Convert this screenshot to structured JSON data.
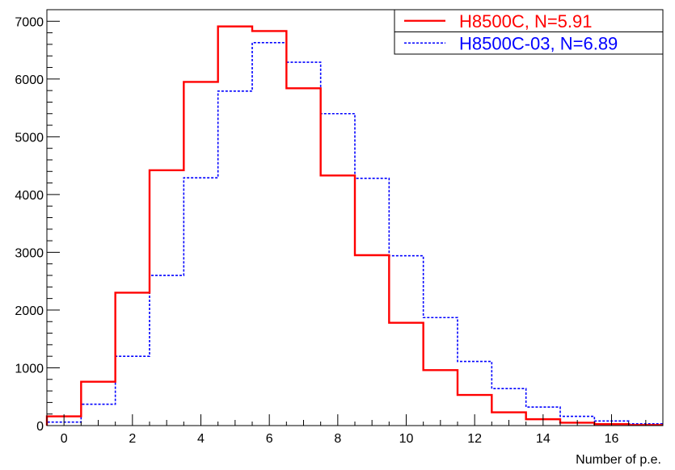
{
  "chart_data": {
    "type": "histogram",
    "title": "",
    "xlabel": "Number of p.e.",
    "ylabel": "",
    "xlim": [
      -0.5,
      17.5
    ],
    "ylim": [
      0,
      7200
    ],
    "x_ticks": [
      0,
      2,
      4,
      6,
      8,
      10,
      12,
      14,
      16
    ],
    "y_ticks": [
      0,
      1000,
      2000,
      3000,
      4000,
      5000,
      6000,
      7000
    ],
    "grid": false,
    "legend_position": "top-right",
    "bin_centers": [
      0,
      1,
      2,
      3,
      4,
      5,
      6,
      7,
      8,
      9,
      10,
      11,
      12,
      13,
      14,
      15,
      16,
      17
    ],
    "series": [
      {
        "name": "H8500C, N=5.91",
        "color": "#ff0000",
        "line_style": "solid",
        "values": [
          160,
          760,
          2300,
          4420,
          5950,
          6910,
          6830,
          5840,
          4330,
          2950,
          1780,
          960,
          530,
          230,
          110,
          50,
          25,
          10
        ]
      },
      {
        "name": "H8500C-03, N=6.89",
        "color": "#0000ff",
        "line_style": "dashed",
        "values": [
          60,
          370,
          1200,
          2600,
          4290,
          5790,
          6630,
          6290,
          5400,
          4280,
          2940,
          1870,
          1110,
          640,
          320,
          160,
          80,
          30
        ]
      }
    ]
  }
}
